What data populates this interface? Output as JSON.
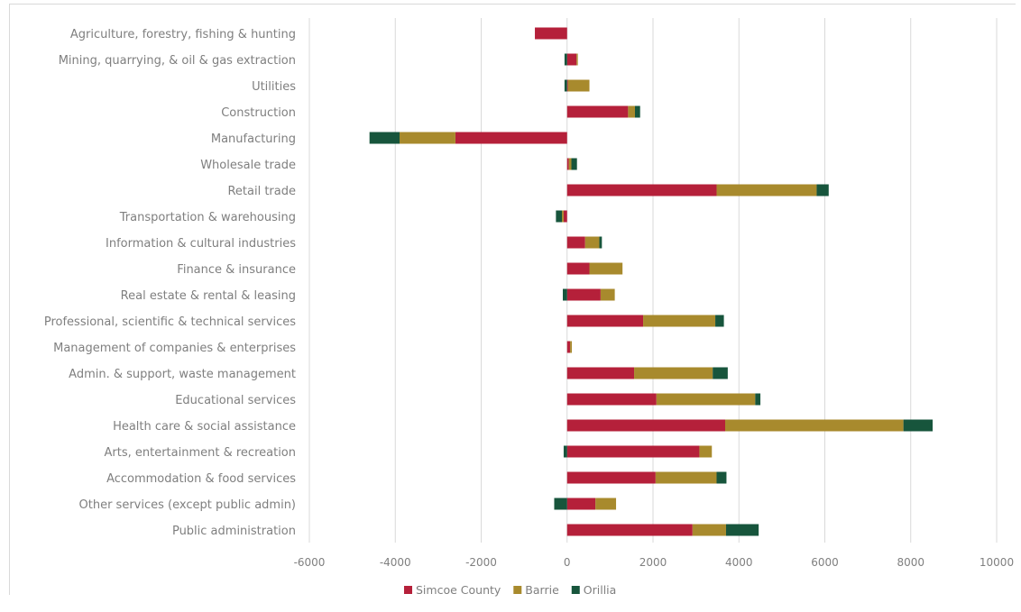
{
  "chart_data": {
    "type": "bar",
    "orientation": "horizontal",
    "stacked": true,
    "title": "",
    "xlabel": "",
    "ylabel": "",
    "xlim": [
      -6000,
      10000
    ],
    "x_ticks": [
      -6000,
      -4000,
      -2000,
      0,
      2000,
      4000,
      6000,
      8000,
      10000
    ],
    "grid": "vertical",
    "legend_position": "bottom",
    "categories": [
      "Agriculture, forestry, fishing & hunting",
      "Mining, quarrying, & oil & gas extraction",
      "Utilities",
      "Construction",
      "Manufacturing",
      "Wholesale trade",
      "Retail trade",
      "Transportation & warehousing",
      "Information & cultural industries",
      "Finance & insurance",
      "Real estate & rental & leasing",
      "Professional, scientific & technical services",
      "Management of companies & enterprises",
      "Admin. & support, waste management",
      "Educational services",
      "Health care & social assistance",
      "Arts, entertainment & recreation",
      "Accommodation & food services",
      "Other services (except public admin)",
      "Public administration"
    ],
    "series": [
      {
        "name": "Simcoe County",
        "color": "#b5203a",
        "values": [
          -750,
          220,
          20,
          1420,
          -2600,
          40,
          3480,
          -80,
          420,
          520,
          780,
          1770,
          70,
          1560,
          2080,
          3680,
          3080,
          2060,
          660,
          2920
        ]
      },
      {
        "name": "Barrie",
        "color": "#a88a2d",
        "values": [
          0,
          30,
          500,
          160,
          -1300,
          60,
          2330,
          -40,
          330,
          770,
          330,
          1680,
          40,
          1830,
          2300,
          4150,
          290,
          1420,
          480,
          780
        ]
      },
      {
        "name": "Orillia",
        "color": "#17553c",
        "values": [
          0,
          -60,
          -60,
          120,
          -700,
          130,
          280,
          -140,
          60,
          0,
          -100,
          200,
          0,
          350,
          120,
          680,
          -80,
          230,
          -300,
          760
        ]
      }
    ]
  }
}
